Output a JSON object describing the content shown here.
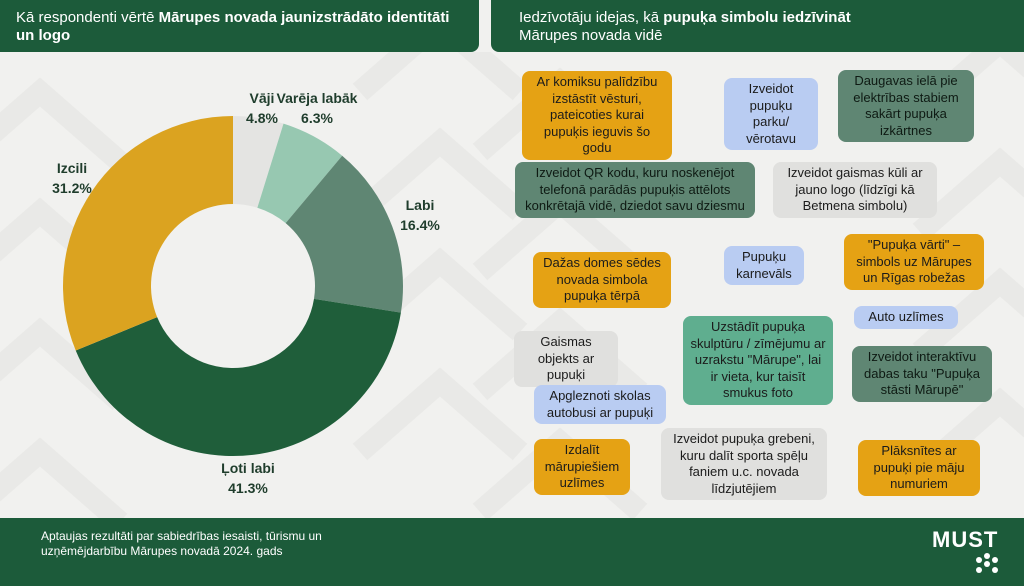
{
  "left_header": {
    "title_regular": "Kā respondenti vērtē ",
    "title_bold": "Mārupes novada jaunizstrādāto identitāti un logo"
  },
  "right_header": {
    "title_regular": "Iedzīvotāju idejas, kā ",
    "title_bold": "pupuķa simbolu iedzīvināt",
    "title_line2": "Mārupes novada vidē"
  },
  "chart_data": {
    "type": "pie",
    "variant": "donut",
    "categories": [
      "Vāji",
      "Varēja labāk",
      "Labi",
      "Ļoti labi",
      "Izcili"
    ],
    "values": [
      4.8,
      6.3,
      16.4,
      41.3,
      31.2
    ],
    "unit": "%",
    "value_labels": [
      "4.8%",
      "6.3%",
      "16.4%",
      "41.3%",
      "31.2%"
    ],
    "colors": [
      "#e4e4e2",
      "#97c8b1",
      "#5f8673",
      "#1f5e3a",
      "#dba320"
    ],
    "start": "top, clockwise",
    "legend": "none"
  },
  "ideas": [
    {
      "text": "Ar komiksu palīdzību izstāstīt vēsturi, pateicoties kurai pupuķis ieguvis šo godu",
      "color": "yellow"
    },
    {
      "text": "Izveidot pupuķu parku/ vērotavu",
      "color": "blue"
    },
    {
      "text": "Daugavas ielā pie elektrības stabiem sakārt pupuķa izkārtnes",
      "color": "dkgreen"
    },
    {
      "text": "Izveidot QR kodu, kuru noskenējot telefonā parādās pupuķis attēlots konkrētajā vidē, dziedot savu dziesmu",
      "color": "dkgreen"
    },
    {
      "text": "Izveidot gaismas kūli ar jauno logo (līdzīgi kā Betmena simbolu)",
      "color": "gray"
    },
    {
      "text": "Dažas domes sēdes novada simbola pupuķa tērpā",
      "color": "yellow"
    },
    {
      "text": "Pupuķu karnevāls",
      "color": "blue"
    },
    {
      "text": "\"Pupuķa vārti\" – simbols uz Mārupes un Rīgas robežas",
      "color": "yellow"
    },
    {
      "text": "Auto uzlīmes",
      "color": "blue"
    },
    {
      "text": "Gaismas objekts ar pupuķi",
      "color": "gray"
    },
    {
      "text": "Uzstādīt pupuķa skulptūru / zīmējumu ar uzrakstu \"Mārupe\", lai ir vieta, kur taisīt smukus foto",
      "color": "green"
    },
    {
      "text": "Izveidot interaktīvu dabas taku \"Pupuķa stāsti Mārupē\"",
      "color": "dkgreen"
    },
    {
      "text": "Apgleznoti skolas autobusi ar pupuķi",
      "color": "blue"
    },
    {
      "text": "Izdalīt mārupiešiem uzlīmes",
      "color": "yellow"
    },
    {
      "text": "Izveidot pupuķa grebeni, kuru dalīt sporta spēļu faniem u.c. novada līdzjutējiem",
      "color": "gray"
    },
    {
      "text": "Plāksnītes ar pupuķi pie māju numuriem",
      "color": "yellow"
    }
  ],
  "footer": {
    "text": "Aptaujas rezultāti par sabiedrības iesaisti, tūrismu un uzņēmējdarbību Mārupes novadā 2024. gads",
    "logo_text": "MUST"
  },
  "colors": {
    "header_bg": "#1c5b3a",
    "page_bg": "#f1f1ef",
    "yellow": "#e5a214",
    "blue": "#b9ccf2",
    "dark_green": "#5f8673",
    "gray": "#e0e0de",
    "green": "#5fae8f"
  }
}
